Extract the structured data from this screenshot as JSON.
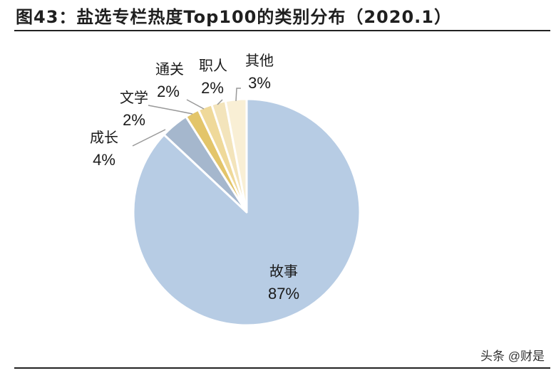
{
  "figure": {
    "title": "图43：盐选专栏热度Top100的类别分布（2020.1）",
    "watermark": "头条 @财是"
  },
  "colors": {
    "故事": "#b7cce4",
    "成长": "#a5b7cd",
    "文学": "#e3c56a",
    "通关": "#efd99a",
    "职人": "#f3e4bb",
    "其他": "#f9efd5",
    "leader": "#999999"
  },
  "chart_data": {
    "type": "pie",
    "title": "盐选专栏热度Top100的类别分布（2020.1）",
    "start": "12 o'clock, clockwise",
    "slices": [
      {
        "label": "故事",
        "value": 87,
        "value_label": "87%"
      },
      {
        "label": "成长",
        "value": 4,
        "value_label": "4%"
      },
      {
        "label": "文学",
        "value": 2,
        "value_label": "2%"
      },
      {
        "label": "通关",
        "value": 2,
        "value_label": "2%"
      },
      {
        "label": "职人",
        "value": 2,
        "value_label": "2%"
      },
      {
        "label": "其他",
        "value": 3,
        "value_label": "3%"
      }
    ]
  }
}
